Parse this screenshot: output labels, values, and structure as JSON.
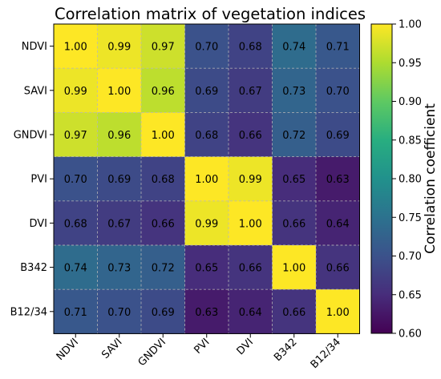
{
  "chart_data": {
    "type": "heatmap",
    "title": "Correlation matrix of vegetation indices",
    "x_labels": [
      "NDVI",
      "SAVI",
      "GNDVI",
      "PVI",
      "DVI",
      "B342",
      "B12/34"
    ],
    "y_labels": [
      "NDVI",
      "SAVI",
      "GNDVI",
      "PVI",
      "DVI",
      "B342",
      "B12/34"
    ],
    "values": [
      [
        1.0,
        0.99,
        0.97,
        0.7,
        0.68,
        0.74,
        0.71
      ],
      [
        0.99,
        1.0,
        0.96,
        0.69,
        0.67,
        0.73,
        0.7
      ],
      [
        0.97,
        0.96,
        1.0,
        0.68,
        0.66,
        0.72,
        0.69
      ],
      [
        0.7,
        0.69,
        0.68,
        1.0,
        0.99,
        0.65,
        0.63
      ],
      [
        0.68,
        0.67,
        0.66,
        0.99,
        1.0,
        0.66,
        0.64
      ],
      [
        0.74,
        0.73,
        0.72,
        0.65,
        0.66,
        1.0,
        0.66
      ],
      [
        0.71,
        0.7,
        0.69,
        0.63,
        0.64,
        0.66,
        1.0
      ]
    ],
    "colormap": "viridis",
    "vmin": 0.6,
    "vmax": 1.0,
    "colorbar_label": "Correlation coefficient",
    "colorbar_ticks": [
      "0.60",
      "0.65",
      "0.70",
      "0.75",
      "0.80",
      "0.85",
      "0.90",
      "0.95",
      "1.00"
    ],
    "grid": true,
    "grid_style": "dashed",
    "x_tick_rotation_deg": 45
  }
}
